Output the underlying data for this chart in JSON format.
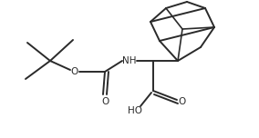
{
  "bg_color": "#ffffff",
  "line_color": "#2a2a2a",
  "line_width": 1.4,
  "text_color": "#2a2a2a",
  "font_size": 7.5,
  "figsize": [
    2.84,
    1.52
  ],
  "dpi": 100,
  "xlim": [
    0,
    284
  ],
  "ylim": [
    0,
    152
  ]
}
